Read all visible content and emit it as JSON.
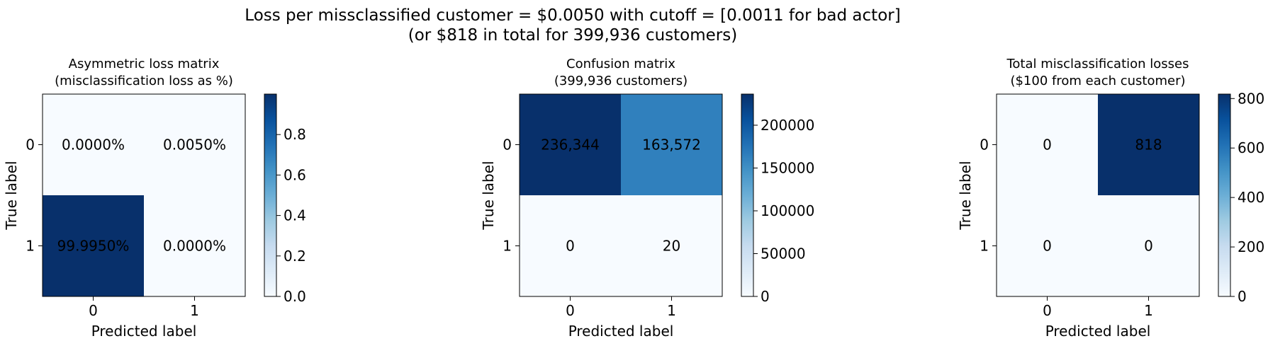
{
  "figure": {
    "suptitle_line1": "Loss per missclassified customer = $0.0050 with cutoff = [0.0011 for bad actor]",
    "suptitle_line2": "(or $818 in total for 399,936 customers)"
  },
  "chart_data": [
    {
      "type": "heatmap",
      "title_line1": "Asymmetric loss matrix",
      "title_line2": "(misclassification loss as %)",
      "xlabel": "Predicted label",
      "ylabel": "True label",
      "x_categories": [
        "0",
        "1"
      ],
      "y_categories": [
        "0",
        "1"
      ],
      "values": [
        [
          0.0,
          5e-05
        ],
        [
          0.99995,
          0.0
        ]
      ],
      "cell_labels": [
        [
          "0.0000%",
          "0.0050%"
        ],
        [
          "99.9950%",
          "0.0000%"
        ]
      ],
      "colormap": "Blues",
      "colorbar_range": [
        0,
        0.99995
      ],
      "colorbar_ticks": [
        0.0,
        0.2,
        0.4,
        0.6,
        0.8
      ],
      "colorbar_tick_labels": [
        "0.0",
        "0.2",
        "0.4",
        "0.6",
        "0.8"
      ]
    },
    {
      "type": "heatmap",
      "title_line1": "Confusion matrix",
      "title_line2": "(399,936 customers)",
      "xlabel": "Predicted label",
      "ylabel": "True label",
      "x_categories": [
        "0",
        "1"
      ],
      "y_categories": [
        "0",
        "1"
      ],
      "values": [
        [
          236344,
          163572
        ],
        [
          0,
          20
        ]
      ],
      "cell_labels": [
        [
          "236,344",
          "163,572"
        ],
        [
          "0",
          "20"
        ]
      ],
      "colormap": "Blues",
      "colorbar_range": [
        0,
        236344
      ],
      "colorbar_ticks": [
        0,
        50000,
        100000,
        150000,
        200000
      ],
      "colorbar_tick_labels": [
        "0",
        "50000",
        "100000",
        "150000",
        "200000"
      ]
    },
    {
      "type": "heatmap",
      "title_line1": "Total misclassification losses",
      "title_line2": "($100 from each customer)",
      "xlabel": "Predicted label",
      "ylabel": "True label",
      "x_categories": [
        "0",
        "1"
      ],
      "y_categories": [
        "0",
        "1"
      ],
      "values": [
        [
          0,
          818
        ],
        [
          0,
          0
        ]
      ],
      "cell_labels": [
        [
          "0",
          "818"
        ],
        [
          "0",
          "0"
        ]
      ],
      "colormap": "Blues",
      "colorbar_range": [
        0,
        818
      ],
      "colorbar_ticks": [
        0,
        200,
        400,
        600,
        800
      ],
      "colorbar_tick_labels": [
        "0",
        "200",
        "400",
        "600",
        "800"
      ]
    }
  ],
  "colors": {
    "blues_light": "#f7fbff",
    "blues_dark": "#08306b",
    "text_dark": "#08306b",
    "text_light": "#ffffff"
  }
}
